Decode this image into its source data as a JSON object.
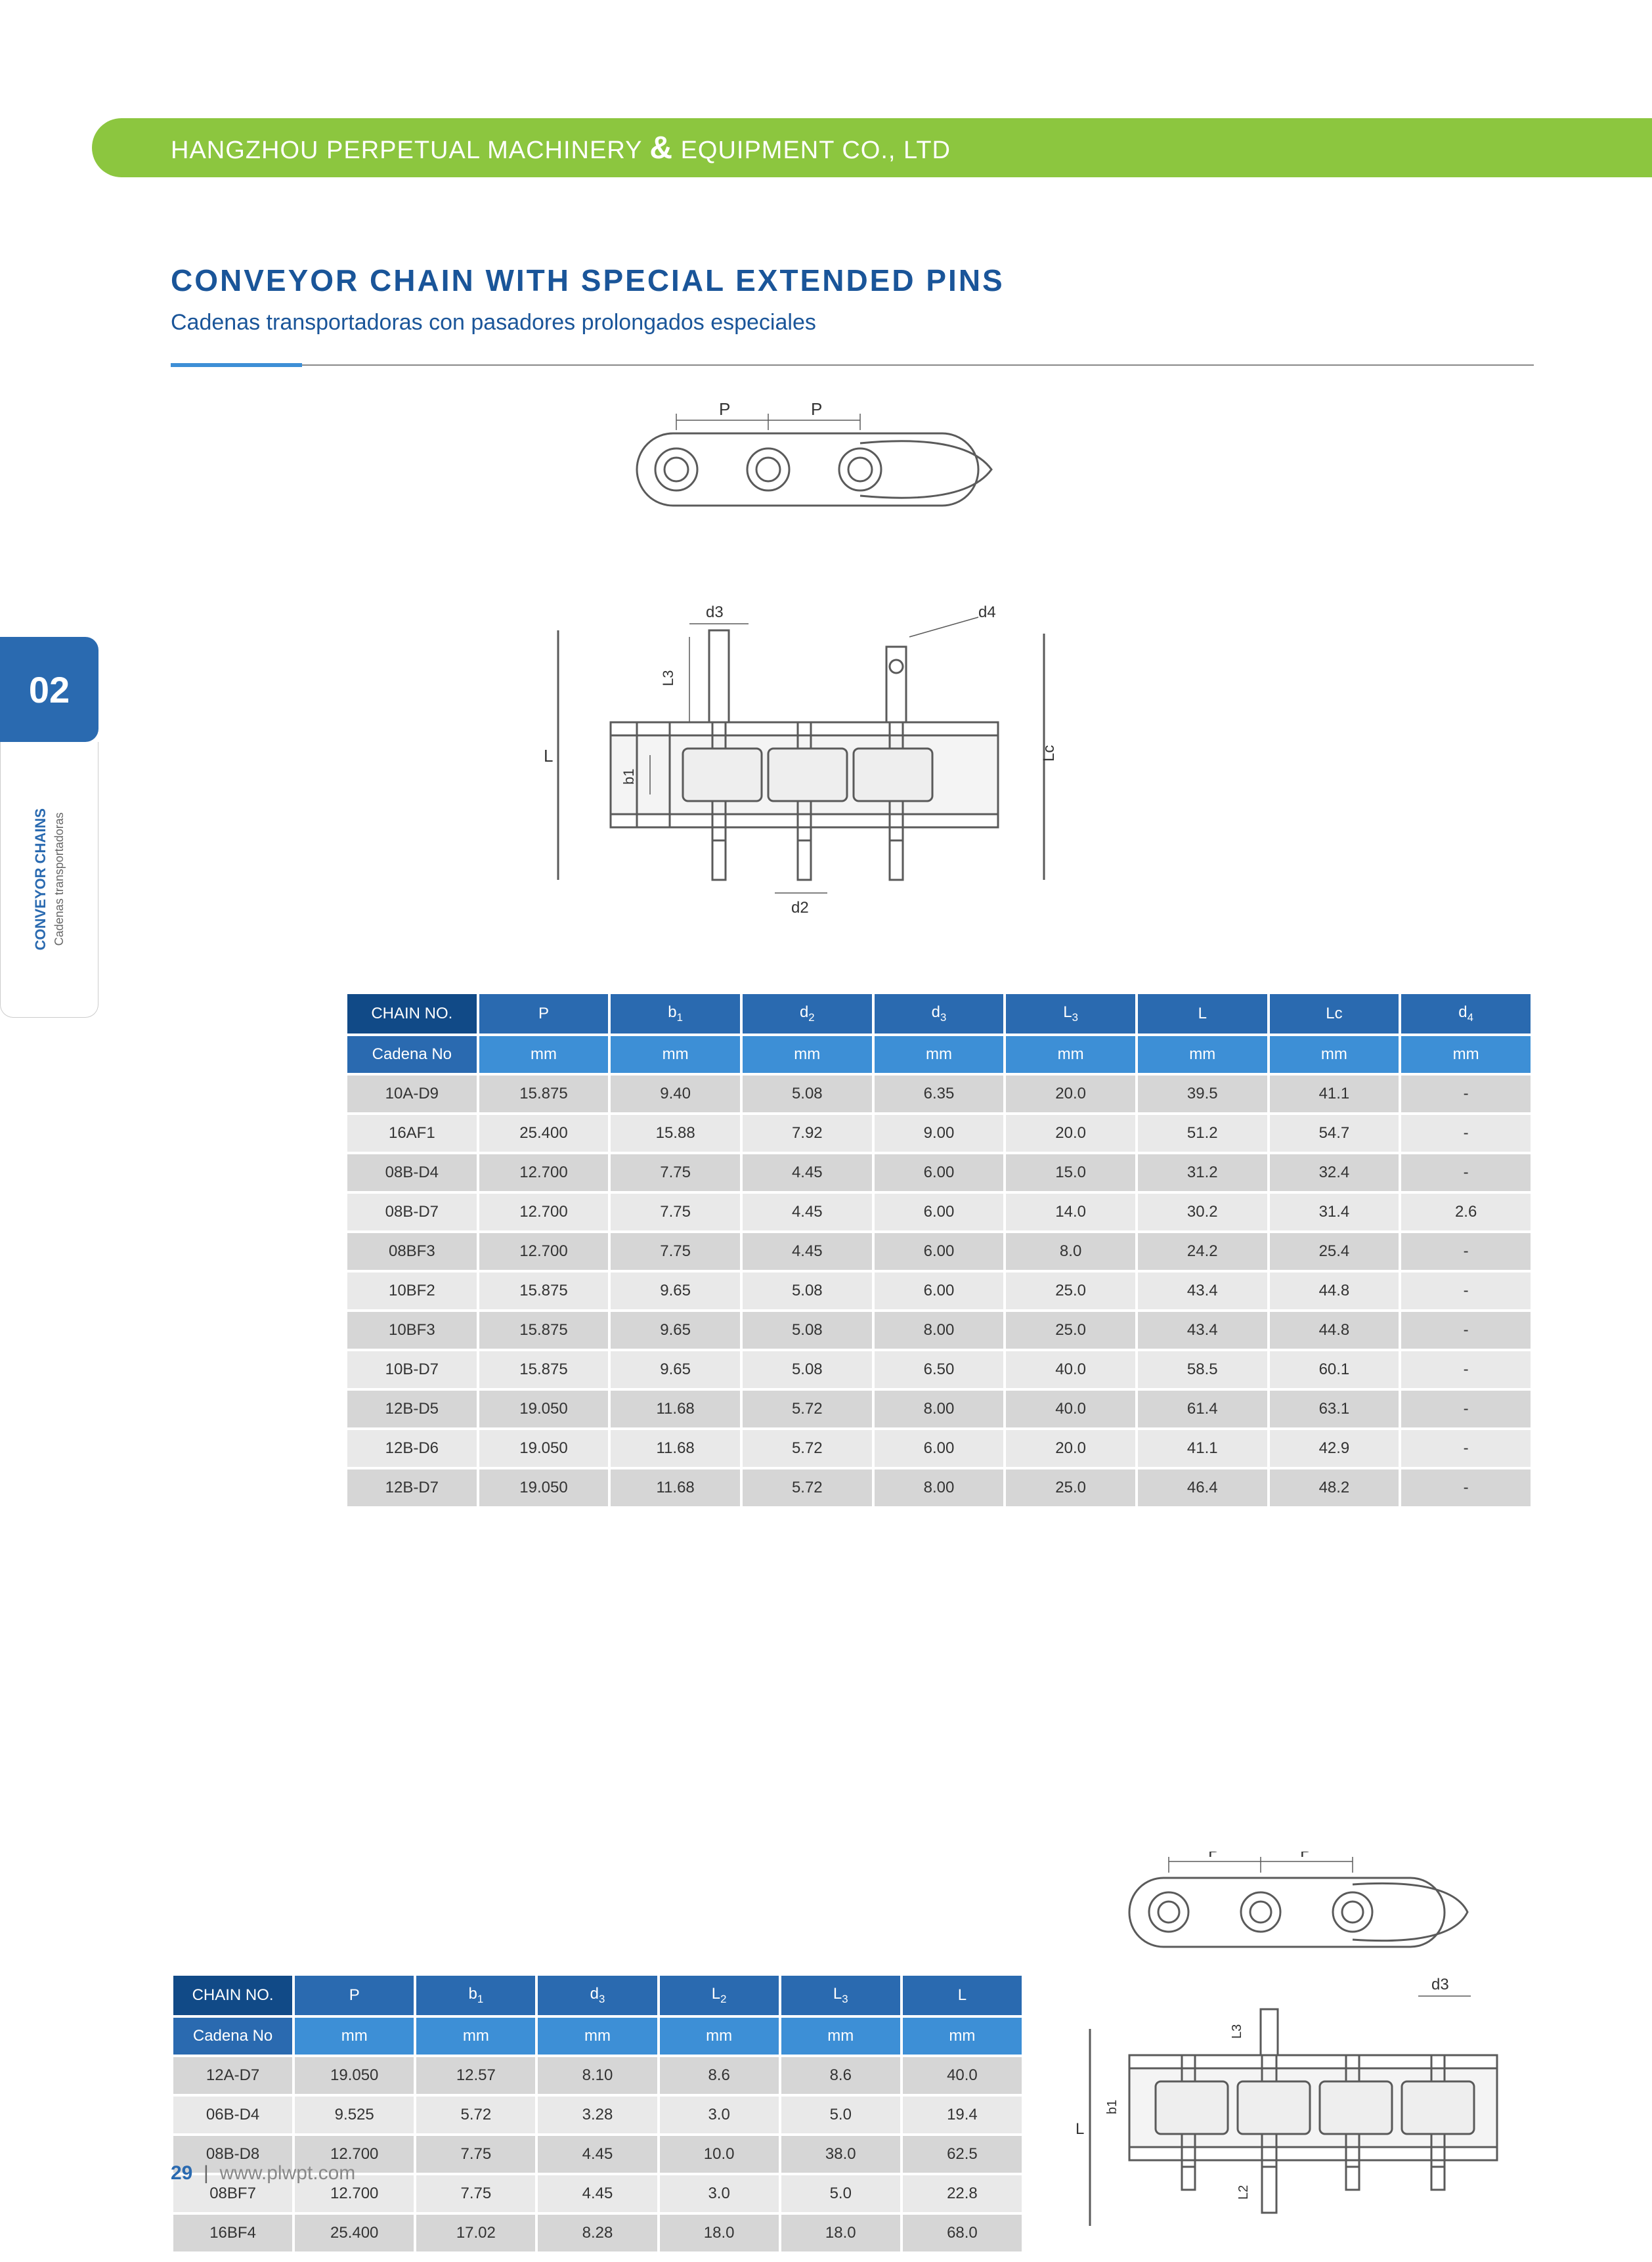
{
  "header": {
    "company": "HANGZHOU PERPETUAL MACHINERY",
    "suffix": "EQUIPMENT CO., LTD"
  },
  "title": {
    "main": "CONVEYOR CHAIN WITH SPECIAL EXTENDED PINS",
    "sub": "Cadenas transportadoras con pasadores prolongados especiales"
  },
  "side_tab": {
    "number": "02",
    "line1": "CONVEYOR CHAINS",
    "line2": "Cadenas transportadoras"
  },
  "diagram_labels": {
    "top": {
      "P1": "P",
      "P2": "P",
      "d3": "d3",
      "d4": "d4",
      "L": "L",
      "L3": "L3",
      "b1": "b1",
      "d2": "d2",
      "Lc": "Lc"
    },
    "bottom": {
      "P1": "P",
      "P2": "P",
      "d3": "d3",
      "L": "L",
      "L3": "L3",
      "b1": "b1",
      "L2": "L2"
    }
  },
  "table1": {
    "header_row1": [
      "CHAIN NO.",
      "P",
      "b1",
      "d2",
      "d3",
      "L3",
      "L",
      "Lc",
      "d4"
    ],
    "header_row2": [
      "Cadena No",
      "mm",
      "mm",
      "mm",
      "mm",
      "mm",
      "mm",
      "mm",
      "mm"
    ],
    "rows": [
      [
        "10A-D9",
        "15.875",
        "9.40",
        "5.08",
        "6.35",
        "20.0",
        "39.5",
        "41.1",
        "-"
      ],
      [
        "16AF1",
        "25.400",
        "15.88",
        "7.92",
        "9.00",
        "20.0",
        "51.2",
        "54.7",
        "-"
      ],
      [
        "08B-D4",
        "12.700",
        "7.75",
        "4.45",
        "6.00",
        "15.0",
        "31.2",
        "32.4",
        "-"
      ],
      [
        "08B-D7",
        "12.700",
        "7.75",
        "4.45",
        "6.00",
        "14.0",
        "30.2",
        "31.4",
        "2.6"
      ],
      [
        "08BF3",
        "12.700",
        "7.75",
        "4.45",
        "6.00",
        "8.0",
        "24.2",
        "25.4",
        "-"
      ],
      [
        "10BF2",
        "15.875",
        "9.65",
        "5.08",
        "6.00",
        "25.0",
        "43.4",
        "44.8",
        "-"
      ],
      [
        "10BF3",
        "15.875",
        "9.65",
        "5.08",
        "8.00",
        "25.0",
        "43.4",
        "44.8",
        "-"
      ],
      [
        "10B-D7",
        "15.875",
        "9.65",
        "5.08",
        "6.50",
        "40.0",
        "58.5",
        "60.1",
        "-"
      ],
      [
        "12B-D5",
        "19.050",
        "11.68",
        "5.72",
        "8.00",
        "40.0",
        "61.4",
        "63.1",
        "-"
      ],
      [
        "12B-D6",
        "19.050",
        "11.68",
        "5.72",
        "6.00",
        "20.0",
        "41.1",
        "42.9",
        "-"
      ],
      [
        "12B-D7",
        "19.050",
        "11.68",
        "5.72",
        "8.00",
        "25.0",
        "46.4",
        "48.2",
        "-"
      ]
    ]
  },
  "table2": {
    "header_row1": [
      "CHAIN NO.",
      "P",
      "b1",
      "d3",
      "L2",
      "L3",
      "L"
    ],
    "header_row2": [
      "Cadena No",
      "mm",
      "mm",
      "mm",
      "mm",
      "mm",
      "mm"
    ],
    "rows": [
      [
        "12A-D7",
        "19.050",
        "12.57",
        "8.10",
        "8.6",
        "8.6",
        "40.0"
      ],
      [
        "06B-D4",
        "9.525",
        "5.72",
        "3.28",
        "3.0",
        "5.0",
        "19.4"
      ],
      [
        "08B-D8",
        "12.700",
        "7.75",
        "4.45",
        "10.0",
        "38.0",
        "62.5"
      ],
      [
        "08BF7",
        "12.700",
        "7.75",
        "4.45",
        "3.0",
        "5.0",
        "22.8"
      ],
      [
        "16BF4",
        "25.400",
        "17.02",
        "8.28",
        "18.0",
        "18.0",
        "68.0"
      ]
    ]
  },
  "footer": {
    "page": "29",
    "url": "www.plwpt.com"
  },
  "colors": {
    "green": "#8cc63f",
    "blue_dark": "#114a87",
    "blue": "#2a6ab0",
    "blue_light": "#3d8fd6",
    "grey_row_odd": "#d6d6d6",
    "grey_row_even": "#e9e9e9",
    "text_heading": "#1a5599",
    "diagram_stroke": "#5a5a5a"
  },
  "typography": {
    "body_font": "Arial",
    "title_fontsize_pt": 34,
    "table_fontsize_pt": 18
  }
}
